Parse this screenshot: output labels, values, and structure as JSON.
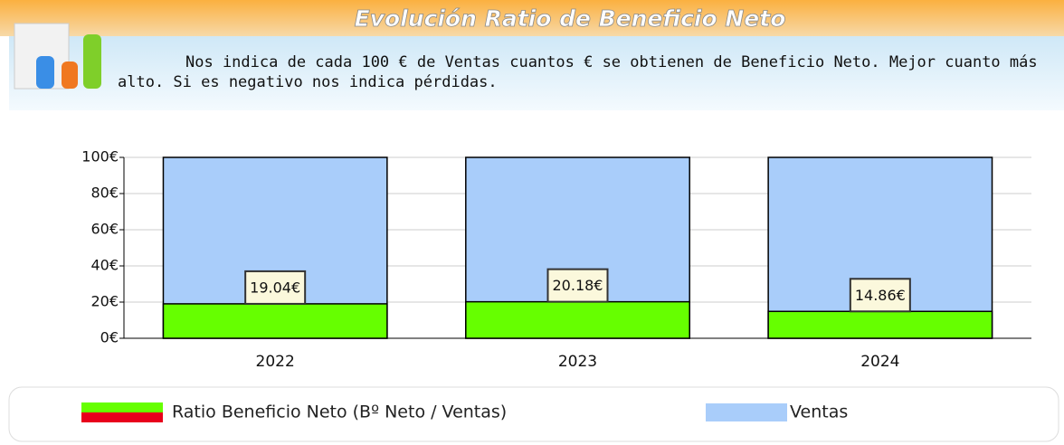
{
  "chart_data": {
    "type": "bar",
    "title": "Evolución Ratio de Beneficio Neto",
    "subtitle": "Nos indica de cada 100 € de Ventas cuantos € se obtienen de Beneficio Neto. Mejor cuanto más alto. Si es negativo nos indica pérdidas.",
    "categories": [
      "2022",
      "2023",
      "2024"
    ],
    "series": [
      {
        "name": "Ratio Beneficio Neto (Bº Neto / Ventas)",
        "color": "#66ff00",
        "values": [
          19.04,
          20.18,
          14.86
        ],
        "value_labels": [
          "19.04€",
          "20.18€",
          "14.86€"
        ]
      },
      {
        "name": "Ventas",
        "color": "#a9cdfa",
        "values": [
          100,
          100,
          100
        ]
      }
    ],
    "ylim": [
      0,
      100
    ],
    "yticks": [
      {
        "value": 0,
        "label": "0€"
      },
      {
        "value": 20,
        "label": "20€"
      },
      {
        "value": 40,
        "label": "40€"
      },
      {
        "value": 60,
        "label": "60€"
      },
      {
        "value": 80,
        "label": "80€"
      },
      {
        "value": 100,
        "label": "100€"
      }
    ],
    "grid": true
  }
}
